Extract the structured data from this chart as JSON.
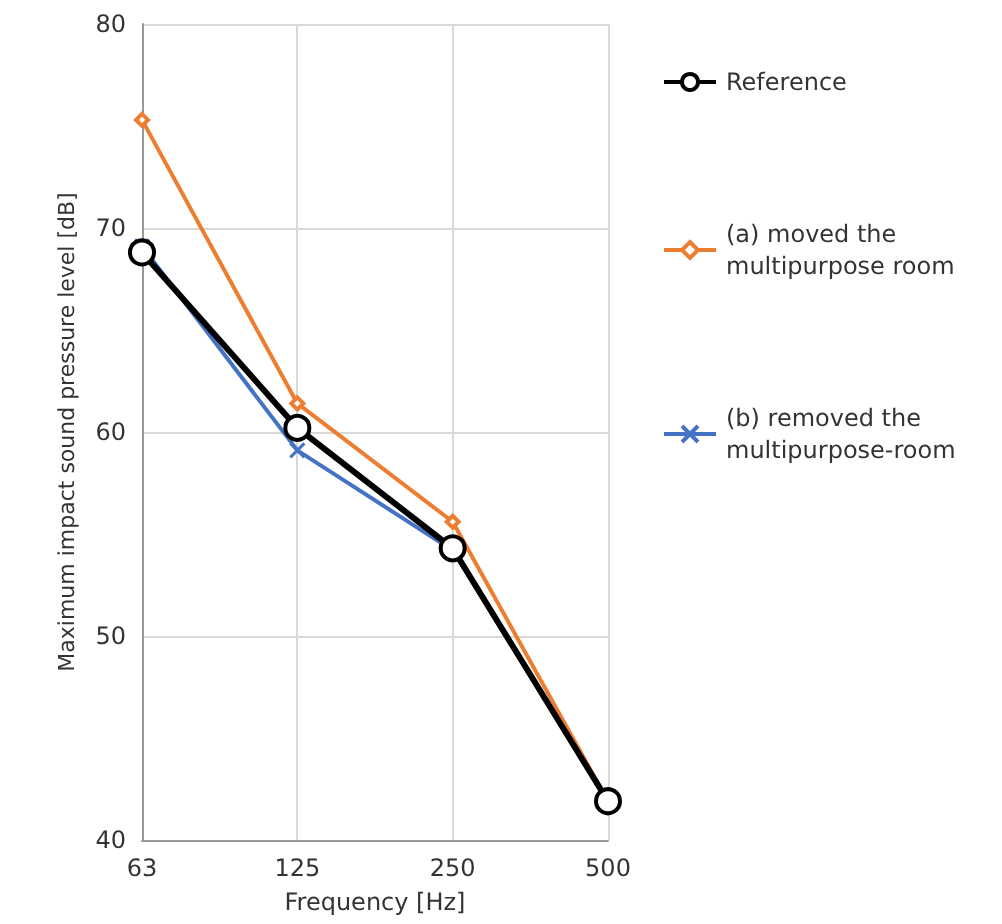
{
  "chart_data": {
    "type": "line",
    "xlabel": "Frequency [Hz]",
    "ylabel": "Maximum impact sound pressure level [dB]",
    "categories": [
      "63",
      "125",
      "250",
      "500"
    ],
    "series": [
      {
        "name": "Reference",
        "color": "#000000",
        "marker": "circle",
        "values": [
          68.8,
          60.2,
          54.3,
          41.9
        ]
      },
      {
        "name": "(a) moved the multipurpose room",
        "color": "#ed7d31",
        "marker": "diamond",
        "values": [
          75.3,
          61.4,
          55.6,
          41.9
        ]
      },
      {
        "name": "(b) removed the multipurpose-room",
        "color": "#4472c4",
        "marker": "cross",
        "values": [
          69.1,
          59.1,
          54.2,
          41.9
        ]
      }
    ],
    "ylim": [
      40,
      80
    ],
    "yticks": [
      40,
      50,
      60,
      70,
      80
    ],
    "grid": true,
    "legend": "right"
  }
}
